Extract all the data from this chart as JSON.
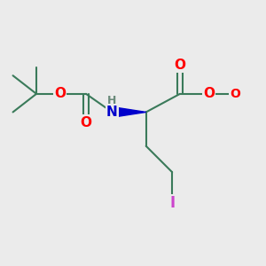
{
  "background_color": "#ebebeb",
  "bond_color": "#3a7a5a",
  "bond_width": 1.5,
  "atom_colors": {
    "O": "#ff0000",
    "N": "#0000cc",
    "H": "#6a8a7a",
    "I": "#cc44cc",
    "C": "#3a7a5a"
  },
  "figsize": [
    3.0,
    3.0
  ],
  "dpi": 100
}
